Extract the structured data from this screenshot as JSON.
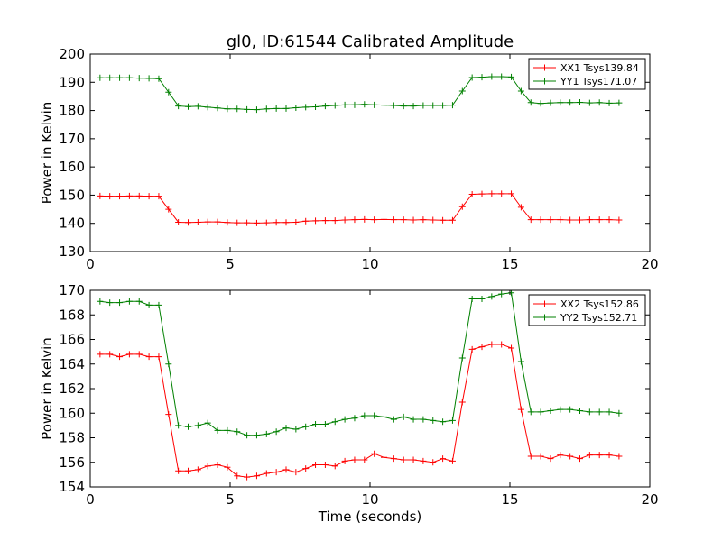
{
  "figure": {
    "title": "gl0, ID:61544 Calibrated Amplitude"
  },
  "colors": {
    "red": "#ff0000",
    "green": "#008000",
    "axes": "#000000",
    "background": "#ffffff"
  },
  "chart_data": [
    {
      "type": "line",
      "title": "gl0, ID:61544 Calibrated Amplitude",
      "xlabel": "",
      "ylabel": "Power in Kelvin",
      "xlim": [
        0,
        20
      ],
      "ylim": [
        130,
        200
      ],
      "xticks": [
        "0",
        "5",
        "10",
        "15",
        "20"
      ],
      "yticks": [
        "130",
        "140",
        "150",
        "160",
        "170",
        "180",
        "190",
        "200"
      ],
      "grid": false,
      "legend_position": "top-right",
      "marker": "+",
      "x": [
        0.35,
        0.7,
        1.05,
        1.4,
        1.75,
        2.1,
        2.45,
        2.8,
        3.15,
        3.5,
        3.85,
        4.2,
        4.55,
        4.9,
        5.25,
        5.6,
        5.95,
        6.3,
        6.65,
        7.0,
        7.35,
        7.7,
        8.05,
        8.4,
        8.75,
        9.1,
        9.45,
        9.8,
        10.15,
        10.5,
        10.85,
        11.2,
        11.55,
        11.9,
        12.25,
        12.6,
        12.95,
        13.3,
        13.65,
        14.0,
        14.35,
        14.7,
        15.05,
        15.4,
        15.75,
        16.1,
        16.45,
        16.8,
        17.15,
        17.5,
        17.85,
        18.2,
        18.55,
        18.9
      ],
      "series": [
        {
          "name": "XX1 Tsys139.84",
          "color": "#ff0000",
          "values": [
            149.7,
            149.6,
            149.6,
            149.7,
            149.7,
            149.6,
            149.6,
            145.0,
            140.4,
            140.3,
            140.4,
            140.5,
            140.5,
            140.3,
            140.2,
            140.2,
            140.1,
            140.2,
            140.3,
            140.3,
            140.4,
            140.8,
            140.9,
            141.0,
            141.0,
            141.2,
            141.3,
            141.4,
            141.3,
            141.4,
            141.3,
            141.3,
            141.2,
            141.3,
            141.2,
            141.1,
            141.1,
            145.9,
            150.3,
            150.4,
            150.5,
            150.5,
            150.5,
            145.7,
            141.3,
            141.3,
            141.3,
            141.3,
            141.2,
            141.2,
            141.3,
            141.3,
            141.3,
            141.2
          ]
        },
        {
          "name": "YY1 Tsys171.07",
          "color": "#008000",
          "values": [
            191.6,
            191.6,
            191.6,
            191.6,
            191.5,
            191.4,
            191.3,
            186.5,
            181.6,
            181.4,
            181.5,
            181.2,
            180.9,
            180.6,
            180.6,
            180.4,
            180.3,
            180.6,
            180.7,
            180.7,
            181.0,
            181.2,
            181.3,
            181.6,
            181.8,
            182.0,
            182.0,
            182.2,
            182.0,
            181.9,
            181.8,
            181.6,
            181.6,
            181.8,
            181.8,
            181.8,
            181.9,
            186.9,
            191.7,
            191.8,
            192.0,
            192.0,
            191.9,
            186.9,
            182.8,
            182.5,
            182.7,
            182.8,
            182.8,
            182.9,
            182.7,
            182.8,
            182.6,
            182.7
          ]
        }
      ]
    },
    {
      "type": "line",
      "title": "",
      "xlabel": "Time (seconds)",
      "ylabel": "Power in Kelvin",
      "xlim": [
        0,
        20
      ],
      "ylim": [
        154,
        170
      ],
      "xticks": [
        "0",
        "5",
        "10",
        "15",
        "20"
      ],
      "yticks": [
        "154",
        "156",
        "158",
        "160",
        "162",
        "164",
        "166",
        "168",
        "170"
      ],
      "grid": false,
      "legend_position": "top-right",
      "marker": "+",
      "x": [
        0.35,
        0.7,
        1.05,
        1.4,
        1.75,
        2.1,
        2.45,
        2.8,
        3.15,
        3.5,
        3.85,
        4.2,
        4.55,
        4.9,
        5.25,
        5.6,
        5.95,
        6.3,
        6.65,
        7.0,
        7.35,
        7.7,
        8.05,
        8.4,
        8.75,
        9.1,
        9.45,
        9.8,
        10.15,
        10.5,
        10.85,
        11.2,
        11.55,
        11.9,
        12.25,
        12.6,
        12.95,
        13.3,
        13.65,
        14.0,
        14.35,
        14.7,
        15.05,
        15.4,
        15.75,
        16.1,
        16.45,
        16.8,
        17.15,
        17.5,
        17.85,
        18.2,
        18.55,
        18.9
      ],
      "series": [
        {
          "name": "XX2 Tsys152.86",
          "color": "#ff0000",
          "values": [
            164.8,
            164.8,
            164.6,
            164.8,
            164.8,
            164.6,
            164.6,
            159.9,
            155.3,
            155.3,
            155.4,
            155.7,
            155.8,
            155.6,
            154.9,
            154.8,
            154.9,
            155.1,
            155.2,
            155.4,
            155.2,
            155.5,
            155.8,
            155.8,
            155.7,
            156.1,
            156.2,
            156.2,
            156.7,
            156.4,
            156.3,
            156.2,
            156.2,
            156.1,
            156.0,
            156.3,
            156.1,
            160.9,
            165.2,
            165.4,
            165.6,
            165.6,
            165.3,
            160.3,
            156.5,
            156.5,
            156.3,
            156.6,
            156.5,
            156.3,
            156.6,
            156.6,
            156.6,
            156.5
          ]
        },
        {
          "name": "YY2 Tsys152.71",
          "color": "#008000",
          "values": [
            169.1,
            169.0,
            169.0,
            169.1,
            169.1,
            168.8,
            168.8,
            164.0,
            159.0,
            158.9,
            159.0,
            159.2,
            158.6,
            158.6,
            158.5,
            158.2,
            158.2,
            158.3,
            158.5,
            158.8,
            158.7,
            158.9,
            159.1,
            159.1,
            159.3,
            159.5,
            159.6,
            159.8,
            159.8,
            159.7,
            159.5,
            159.7,
            159.5,
            159.5,
            159.4,
            159.3,
            159.4,
            164.5,
            169.3,
            169.3,
            169.5,
            169.7,
            169.8,
            164.2,
            160.1,
            160.1,
            160.2,
            160.3,
            160.3,
            160.2,
            160.1,
            160.1,
            160.1,
            160.0
          ]
        }
      ]
    }
  ]
}
